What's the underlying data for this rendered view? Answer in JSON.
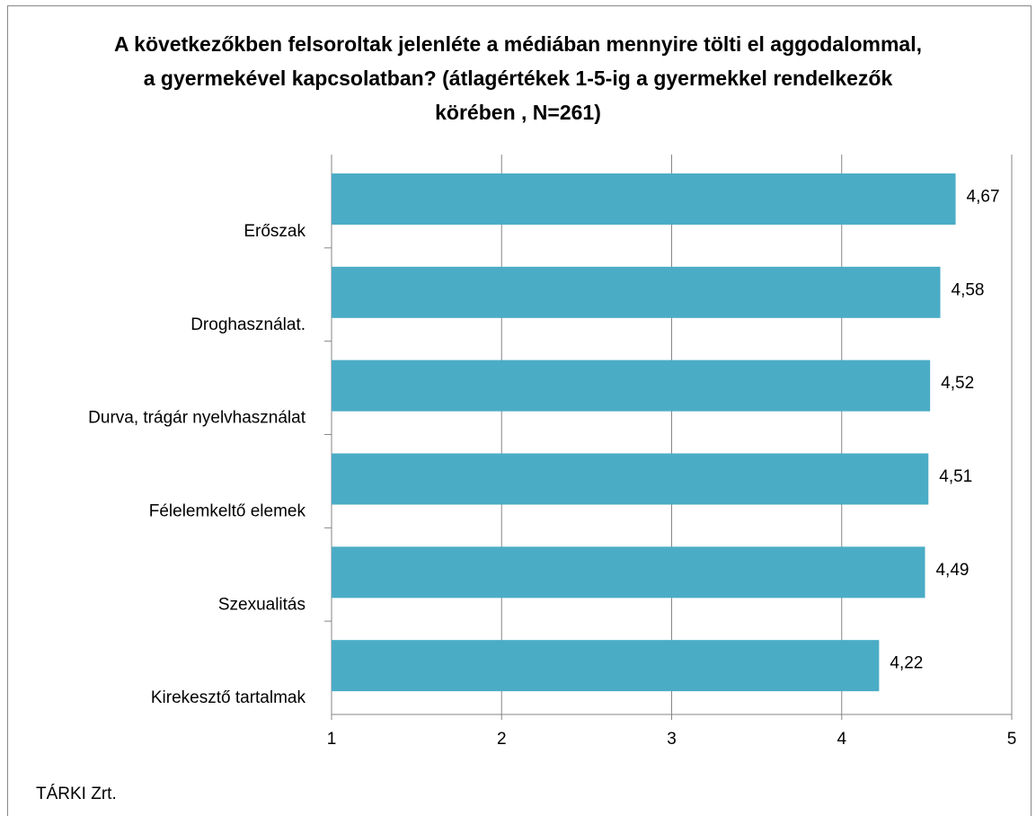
{
  "chart_data": {
    "type": "hbar",
    "title": "A következőkben felsoroltak jelenléte a médiában mennyire tölti el aggodalommal, a gyermekével kapcsolatban? (átlagértékek 1-5-ig a gyermekkel rendelkezők körében , N=261)",
    "categories": [
      "Erőszak",
      "Droghasználat.",
      "Durva, trágár nyelvhasználat",
      "Félelemkeltő elemek",
      "Szexualitás",
      "Kirekesztő tartalmak"
    ],
    "values": [
      4.67,
      4.58,
      4.52,
      4.51,
      4.49,
      4.22
    ],
    "value_labels": [
      "4,67",
      "4,58",
      "4,52",
      "4,51",
      "4,49",
      "4,22"
    ],
    "color": "#4bacc6",
    "xlim": [
      1,
      5
    ],
    "xticks": [
      1,
      2,
      3,
      4,
      5
    ],
    "grid": true,
    "source": "TÁRKI Zrt."
  }
}
